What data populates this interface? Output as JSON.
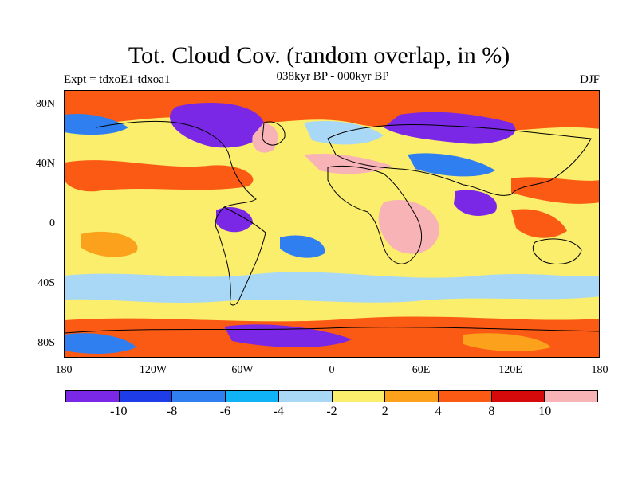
{
  "title": "Tot. Cloud Cov. (random overlap, in %)",
  "left_label": "Expt = tdxoE1-tdxoa1",
  "center_label": "038kyr BP - 000kyr BP",
  "right_label": "DJF",
  "lat_ticks": [
    "80N",
    "40N",
    "0",
    "40S",
    "80S"
  ],
  "lon_ticks": [
    "180",
    "120W",
    "60W",
    "0",
    "60E",
    "120E",
    "180"
  ],
  "colorbar": {
    "colors": [
      "#7a28e6",
      "#1e3ce8",
      "#2f7ff0",
      "#10b4f6",
      "#a8d8f5",
      "#fbee6c",
      "#fba11b",
      "#fb5a14",
      "#d60a0a",
      "#f8b3b6"
    ],
    "labels": [
      "-10",
      "-8",
      "-6",
      "-4",
      "-2",
      "2",
      "4",
      "8",
      "10"
    ]
  }
}
